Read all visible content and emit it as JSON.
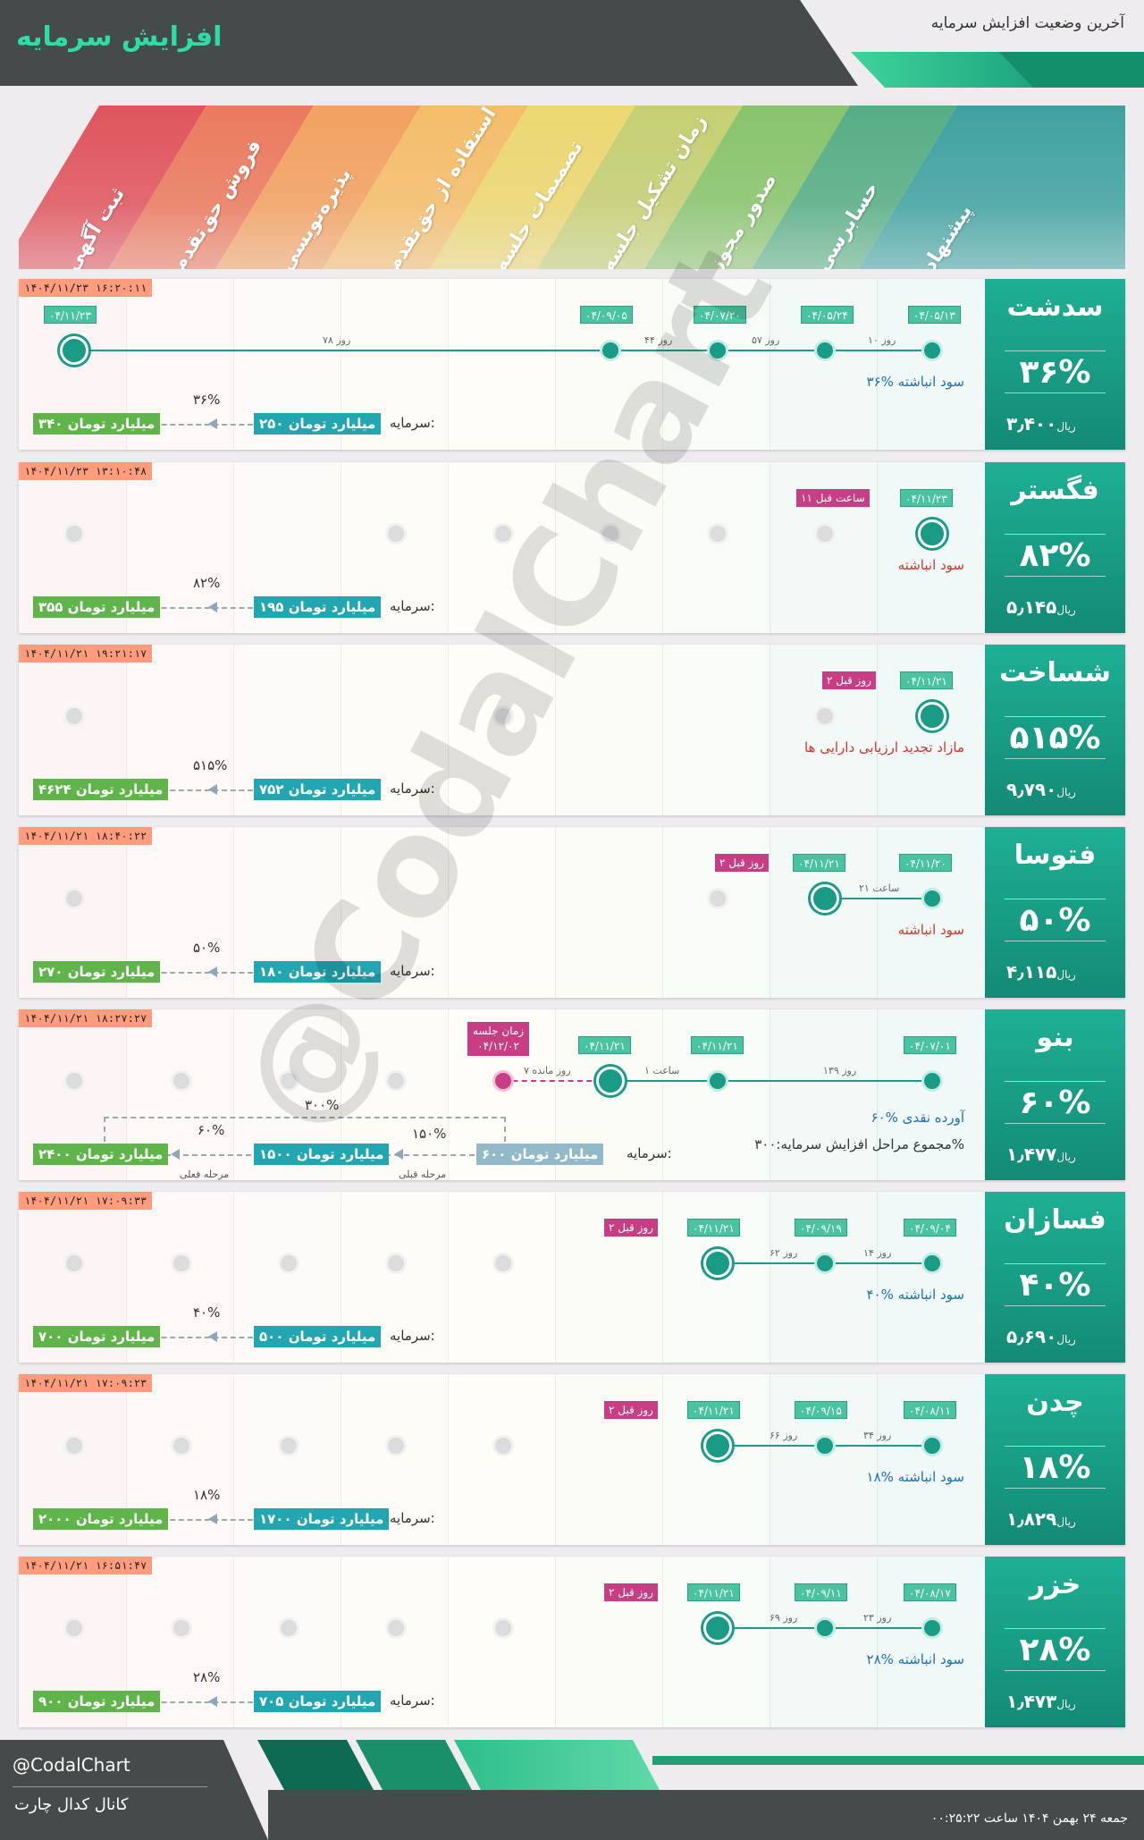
{
  "header": {
    "title": "افزایش سرمایه",
    "subtitle": "آخرین وضعیت افزایش سرمایه"
  },
  "stages": [
    "ثبت آگهی",
    "فروش حق‌تقدم",
    "پذیره‌نویسی",
    "استفاده از حق‌تقدم",
    "تصمیمات جلسه",
    "زمان تشکیل جلسه",
    "صدور مجوز",
    "حسابرسی",
    "پیشنهاد"
  ],
  "stage_colors": [
    "#e0555d",
    "#eb7a5e",
    "#f2a160",
    "#f4bd69",
    "#ecd770",
    "#c5cf72",
    "#88c46c",
    "#56ae84",
    "#3fa2a0"
  ],
  "rows": [
    {
      "symbol": "سدشت",
      "percent": "۳۶%",
      "price": "۳٫۴۰۰",
      "price_unit": "ریال",
      "timestamp": "۱۴۰۴/۱۱/۲۳ ۱۶:۲۰:۱۱",
      "dates": [
        "۰۴/۰۵/۱۳",
        "۰۴/۰۵/۲۴",
        "۰۴/۰۷/۲۰",
        "۰۴/۰۹/۰۵",
        "۰۴/۱۱/۲۳"
      ],
      "gaps": [
        "۱۰ روز",
        "۵۷ روز",
        "۴۴ روز",
        "۷۸ روز"
      ],
      "status": "۳۶% سود انباشته",
      "capital_label": "سرمایه:",
      "from": "۲۵۰ میلیارد تومان",
      "to": "۳۴۰ میلیارد تومان",
      "arrow_pct": "۳۶%"
    },
    {
      "symbol": "فگستر",
      "percent": "۸۲%",
      "price": "۵٫۱۴۵",
      "price_unit": "ریال",
      "timestamp": "۱۴۰۴/۱۱/۲۳ ۱۳:۱۰:۴۸",
      "dates": [
        "۰۴/۱۱/۲۳"
      ],
      "ago": "۱۱ ساعت قبل",
      "status": "سود انباشته",
      "capital_label": "سرمایه:",
      "from": "۱۹۵ میلیارد تومان",
      "to": "۳۵۵ میلیارد تومان",
      "arrow_pct": "۸۲%"
    },
    {
      "symbol": "شساخت",
      "percent": "۵۱۵%",
      "price": "۹٫۷۹۰",
      "price_unit": "ریال",
      "timestamp": "۱۴۰۴/۱۱/۲۱ ۱۹:۲۱:۱۷",
      "dates": [
        "۰۴/۱۱/۲۱"
      ],
      "ago": "۲ روز قبل",
      "status": "مازاد تجدید ارزیابی دارایی ها",
      "capital_label": "سرمایه:",
      "from": "۷۵۲ میلیارد تومان",
      "to": "۴۶۲۴ میلیارد تومان",
      "arrow_pct": "۵۱۵%"
    },
    {
      "symbol": "فتوسا",
      "percent": "۵۰%",
      "price": "۴٫۱۱۵",
      "price_unit": "ریال",
      "timestamp": "۱۴۰۴/۱۱/۲۱ ۱۸:۴۰:۲۲",
      "dates": [
        "۰۴/۱۱/۲۰",
        "۰۴/۱۱/۲۱"
      ],
      "gaps": [
        "۲۱ ساعت"
      ],
      "ago": "۲ روز قبل",
      "status": "سود انباشته",
      "capital_label": "سرمایه:",
      "from": "۱۸۰ میلیارد تومان",
      "to": "۲۷۰ میلیارد تومان",
      "arrow_pct": "۵۰%"
    },
    {
      "symbol": "بنو",
      "percent": "۶۰%",
      "price": "۱٫۴۷۷",
      "price_unit": "ریال",
      "timestamp": "۱۴۰۴/۱۱/۲۱ ۱۸:۲۷:۲۷",
      "dates": [
        "۰۴/۰۷/۰۱",
        "۰۴/۱۱/۲۱",
        "۰۴/۱۱/۲۱"
      ],
      "gaps": [
        "۱۳۹ روز",
        "۱ ساعت",
        "۷ روز مانده"
      ],
      "meeting_label": "زمان جلسه",
      "meeting_date": "۰۴/۱۲/۰۲",
      "status": "۶۰% آورده نقدی",
      "total": "مجموع مراحل افزایش سرمایه:۳۰۰%",
      "capital_label": "سرمایه:",
      "base": "۶۰۰ میلیارد تومان",
      "from": "۱۵۰۰ میلیارد تومان",
      "to": "۲۴۰۰ میلیارد تومان",
      "prev_pct": "۱۵۰%",
      "prev_label": "مرحله قبلی",
      "arrow_pct": "۶۰%",
      "cur_label": "مرحله فعلی",
      "total_pct": "۳۰۰%"
    },
    {
      "symbol": "فسازان",
      "percent": "۴۰%",
      "price": "۵٫۶۹۰",
      "price_unit": "ریال",
      "timestamp": "۱۴۰۴/۱۱/۲۱ ۱۷:۰۹:۳۳",
      "dates": [
        "۰۴/۰۹/۰۴",
        "۰۴/۰۹/۱۹",
        "۰۴/۱۱/۲۱"
      ],
      "gaps": [
        "۱۴ روز",
        "۶۲ روز"
      ],
      "ago": "۲ روز قبل",
      "status": "۴۰% سود انباشته",
      "capital_label": "سرمایه:",
      "from": "۵۰۰ میلیارد تومان",
      "to": "۷۰۰ میلیارد تومان",
      "arrow_pct": "۴۰%"
    },
    {
      "symbol": "چدن",
      "percent": "۱۸%",
      "price": "۱٫۸۲۹",
      "price_unit": "ریال",
      "timestamp": "۱۴۰۴/۱۱/۲۱ ۱۷:۰۹:۲۳",
      "dates": [
        "۰۴/۰۸/۱۱",
        "۰۴/۰۹/۱۵",
        "۰۴/۱۱/۲۱"
      ],
      "gaps": [
        "۳۴ روز",
        "۶۶ روز"
      ],
      "ago": "۲ روز قبل",
      "status": "۱۸% سود انباشته",
      "capital_label": "سرمایه:",
      "from": "۱۷۰۰ میلیارد تومان",
      "to": "۲۰۰۰ میلیارد تومان",
      "arrow_pct": "۱۸%"
    },
    {
      "symbol": "خزر",
      "percent": "۲۸%",
      "price": "۱٫۴۷۳",
      "price_unit": "ریال",
      "timestamp": "۱۴۰۴/۱۱/۲۱ ۱۶:۵۱:۴۷",
      "dates": [
        "۰۴/۰۸/۱۷",
        "۰۴/۰۹/۱۱",
        "۰۴/۱۱/۲۱"
      ],
      "gaps": [
        "۲۳ روز",
        "۶۹ روز"
      ],
      "ago": "۲ روز قبل",
      "status": "۲۸% سود انباشته",
      "capital_label": "سرمایه:",
      "from": "۷۰۵ میلیارد تومان",
      "to": "۹۰۰ میلیارد تومان",
      "arrow_pct": "۲۸%"
    }
  ],
  "watermark": "@CodalChart",
  "footer": {
    "handle": "@CodalChart",
    "channel": "کانال کدال چارت",
    "datetime": "جمعه ۲۴ بهمن ۱۴۰۴ ساعت ۰۰:۲۵:۲۲"
  }
}
